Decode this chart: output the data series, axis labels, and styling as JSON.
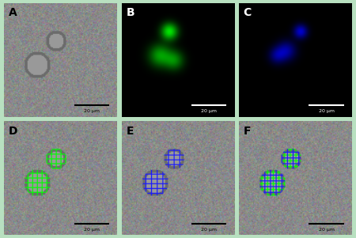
{
  "panel_labels": [
    "A",
    "B",
    "C",
    "D",
    "E",
    "F"
  ],
  "scale_bar_text": "20 μm",
  "border_color": "#b8e0c0",
  "label_color_white": "#ffffff",
  "label_color_black": "#000000",
  "fig_width": 4.5,
  "fig_height": 3.01,
  "dpi": 100,
  "nrows": 2,
  "ncols": 3
}
